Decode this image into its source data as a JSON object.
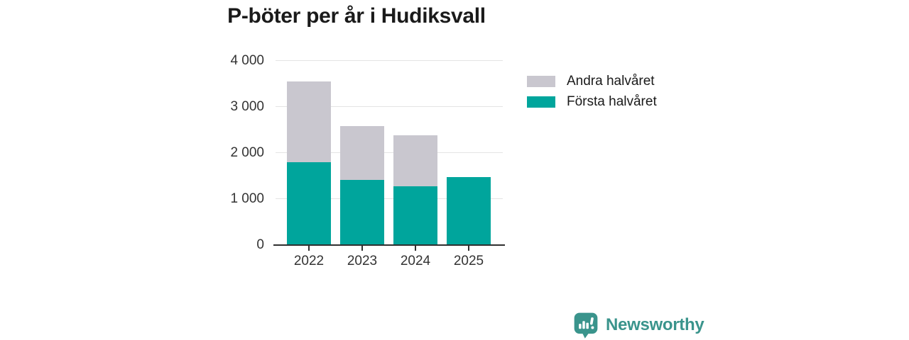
{
  "title": "P-böter per år i Hudiksvall",
  "colors": {
    "first_half": "#00a59c",
    "second_half": "#c9c7cf",
    "brand": "#3a948c",
    "axis": "#2f2f2f",
    "grid": "#e4e4e4",
    "text": "#1a1a1a",
    "label": "#333333"
  },
  "legend": [
    {
      "label": "Andra halvåret",
      "color_key": "second_half"
    },
    {
      "label": "Första halvåret",
      "color_key": "first_half"
    }
  ],
  "chart_data": {
    "type": "bar",
    "stacked": true,
    "title": "P-böter per år i Hudiksvall",
    "categories": [
      "2022",
      "2023",
      "2024",
      "2025"
    ],
    "series": [
      {
        "name": "Första halvåret",
        "color_key": "first_half",
        "values": [
          1800,
          1420,
          1280,
          1480
        ]
      },
      {
        "name": "Andra halvåret",
        "color_key": "second_half",
        "values": [
          1750,
          1170,
          1110,
          0
        ]
      }
    ],
    "totals": [
      3550,
      2590,
      2390,
      1480
    ],
    "xlabel": "",
    "ylabel": "",
    "ylim": [
      0,
      4000
    ],
    "yticks": [
      0,
      1000,
      2000,
      3000,
      4000
    ],
    "ytick_labels": [
      "0",
      "1 000",
      "2 000",
      "3 000",
      "4 000"
    ],
    "grid": true,
    "legend_position": "right"
  },
  "footer": {
    "brand_name": "Newsworthy",
    "brand_icon": "bar-chart-speech-bubble-icon"
  }
}
